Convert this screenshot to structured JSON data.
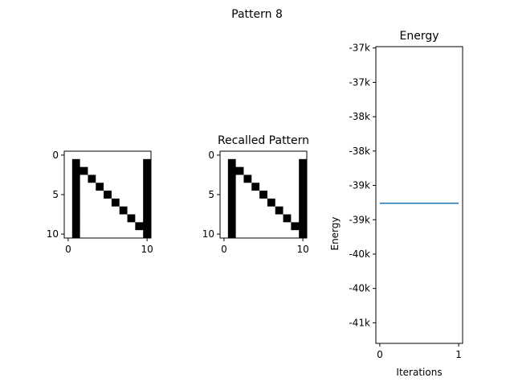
{
  "figure": {
    "title": "Pattern 8"
  },
  "chart_data": [
    {
      "type": "heatmap",
      "title": "",
      "rows": 11,
      "cols": 11,
      "colormap": {
        "0": "#ffffff",
        "1": "#000000"
      },
      "xticks": [
        0,
        10
      ],
      "yticks": [
        0,
        5,
        10
      ],
      "cells": [
        [
          0,
          0,
          0,
          0,
          0,
          0,
          0,
          0,
          0,
          0,
          0
        ],
        [
          0,
          1,
          0,
          0,
          0,
          0,
          0,
          0,
          0,
          0,
          1
        ],
        [
          0,
          1,
          1,
          0,
          0,
          0,
          0,
          0,
          0,
          0,
          1
        ],
        [
          0,
          1,
          0,
          1,
          0,
          0,
          0,
          0,
          0,
          0,
          1
        ],
        [
          0,
          1,
          0,
          0,
          1,
          0,
          0,
          0,
          0,
          0,
          1
        ],
        [
          0,
          1,
          0,
          0,
          0,
          1,
          0,
          0,
          0,
          0,
          1
        ],
        [
          0,
          1,
          0,
          0,
          0,
          0,
          1,
          0,
          0,
          0,
          1
        ],
        [
          0,
          1,
          0,
          0,
          0,
          0,
          0,
          1,
          0,
          0,
          1
        ],
        [
          0,
          1,
          0,
          0,
          0,
          0,
          0,
          0,
          1,
          0,
          1
        ],
        [
          0,
          1,
          0,
          0,
          0,
          0,
          0,
          0,
          0,
          1,
          1
        ],
        [
          0,
          1,
          0,
          0,
          0,
          0,
          0,
          0,
          0,
          0,
          1
        ]
      ]
    },
    {
      "type": "heatmap",
      "title": "Recalled Pattern",
      "rows": 11,
      "cols": 11,
      "colormap": {
        "0": "#ffffff",
        "1": "#000000"
      },
      "xticks": [
        0,
        10
      ],
      "yticks": [
        0,
        5,
        10
      ],
      "cells": [
        [
          0,
          0,
          0,
          0,
          0,
          0,
          0,
          0,
          0,
          0,
          0
        ],
        [
          0,
          1,
          0,
          0,
          0,
          0,
          0,
          0,
          0,
          0,
          1
        ],
        [
          0,
          1,
          1,
          0,
          0,
          0,
          0,
          0,
          0,
          0,
          1
        ],
        [
          0,
          1,
          0,
          1,
          0,
          0,
          0,
          0,
          0,
          0,
          1
        ],
        [
          0,
          1,
          0,
          0,
          1,
          0,
          0,
          0,
          0,
          0,
          1
        ],
        [
          0,
          1,
          0,
          0,
          0,
          1,
          0,
          0,
          0,
          0,
          1
        ],
        [
          0,
          1,
          0,
          0,
          0,
          0,
          1,
          0,
          0,
          0,
          1
        ],
        [
          0,
          1,
          0,
          0,
          0,
          0,
          0,
          1,
          0,
          0,
          1
        ],
        [
          0,
          1,
          0,
          0,
          0,
          0,
          0,
          0,
          1,
          0,
          1
        ],
        [
          0,
          1,
          0,
          0,
          0,
          0,
          0,
          0,
          0,
          1,
          1
        ],
        [
          0,
          1,
          0,
          0,
          0,
          0,
          0,
          0,
          0,
          0,
          1
        ]
      ]
    },
    {
      "type": "line",
      "title": "Energy",
      "xlabel": "Iterations",
      "ylabel": "Energy",
      "xlim": [
        -0.05,
        1.05
      ],
      "ylim": [
        -41300,
        -36980
      ],
      "xticks": [
        {
          "v": 0,
          "label": "0"
        },
        {
          "v": 1,
          "label": "1"
        }
      ],
      "yticks": [
        {
          "v": -37000,
          "label": "-37k"
        },
        {
          "v": -37500,
          "label": "-37k"
        },
        {
          "v": -38000,
          "label": "-38k"
        },
        {
          "v": -38500,
          "label": "-38k"
        },
        {
          "v": -39000,
          "label": "-39k"
        },
        {
          "v": -39500,
          "label": "-39k"
        },
        {
          "v": -40000,
          "label": "-40k"
        },
        {
          "v": -40500,
          "label": "-40k"
        },
        {
          "v": -41000,
          "label": "-41k"
        }
      ],
      "series": [
        {
          "color": "#1f77b4",
          "x": [
            0,
            1
          ],
          "y": [
            -39260,
            -39260
          ]
        }
      ]
    }
  ]
}
